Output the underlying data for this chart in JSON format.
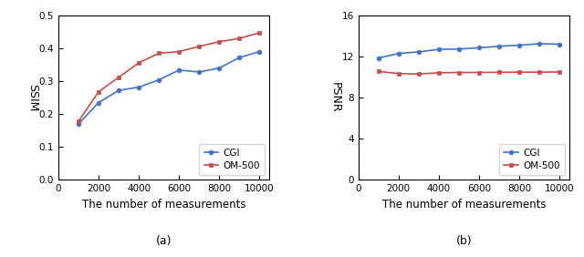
{
  "x": [
    1000,
    2000,
    3000,
    4000,
    5000,
    6000,
    7000,
    8000,
    9000,
    10000
  ],
  "ssim_cgi": [
    0.17,
    0.235,
    0.272,
    0.282,
    0.304,
    0.334,
    0.328,
    0.34,
    0.372,
    0.39
  ],
  "ssim_om500": [
    0.178,
    0.268,
    0.312,
    0.356,
    0.385,
    0.39,
    0.406,
    0.42,
    0.43,
    0.447
  ],
  "psnr_cgi": [
    11.85,
    12.3,
    12.45,
    12.7,
    12.73,
    12.85,
    13.0,
    13.1,
    13.25,
    13.2
  ],
  "psnr_om500": [
    10.55,
    10.35,
    10.3,
    10.42,
    10.45,
    10.45,
    10.47,
    10.48,
    10.48,
    10.5
  ],
  "color_blue": "#4472C4",
  "color_red": "#C0504D",
  "xlabel": "The number of measurements",
  "ylabel_a": "SSIM",
  "ylabel_b": "PSNR",
  "label_cgi": "CGI",
  "label_om500": "OM-500",
  "caption_a": "(a)",
  "caption_b": "(b)",
  "ssim_ylim": [
    0,
    0.5
  ],
  "ssim_yticks": [
    0,
    0.1,
    0.2,
    0.3,
    0.4,
    0.5
  ],
  "psnr_ylim": [
    0,
    16
  ],
  "psnr_yticks": [
    0,
    4,
    8,
    12,
    16
  ],
  "xlim": [
    0,
    10500
  ],
  "xticks": [
    0,
    2000,
    4000,
    6000,
    8000,
    10000
  ],
  "xticklabels": [
    "0",
    "2000",
    "4000",
    "6000",
    "8000",
    "10000"
  ]
}
